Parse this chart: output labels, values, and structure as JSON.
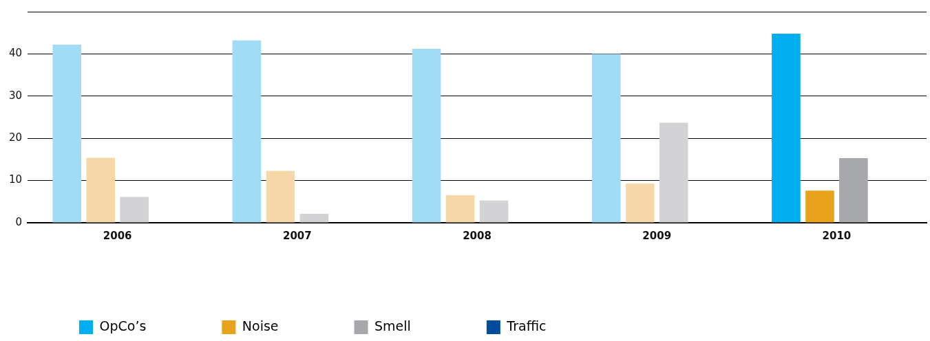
{
  "chart_data": {
    "type": "bar",
    "categories": [
      "2006",
      "2007",
      "2008",
      "2009",
      "2010"
    ],
    "series": [
      {
        "name": "OpCo’s",
        "color": "#00aeef",
        "colors": [
          "#a0dcf6",
          "#a0dcf6",
          "#a0dcf6",
          "#a0dcf6",
          "#00aeef"
        ],
        "values": [
          42.2,
          43.2,
          41.2,
          40,
          44.8
        ]
      },
      {
        "name": "Noise",
        "color": "#e8a21c",
        "colors": [
          "#f6d7a8",
          "#f6d7a8",
          "#f6d7a8",
          "#f6d7a8",
          "#e8a21c"
        ],
        "values": [
          15.4,
          12.3,
          6.5,
          9.3,
          7.6
        ]
      },
      {
        "name": "Smell",
        "color": "#a7a8ac",
        "colors": [
          "#d3d3d5",
          "#d3d3d5",
          "#d3d3d5",
          "#d3d3d5",
          "#a7a8ac"
        ],
        "values": [
          6.1,
          2.1,
          5.3,
          23.7,
          15.3
        ]
      },
      {
        "name": "Traffic",
        "color": "#004b9b",
        "values": [
          null,
          null,
          null,
          null,
          null
        ]
      }
    ],
    "ylim": [
      0,
      50
    ],
    "yticks": [
      0,
      10,
      20,
      30,
      40,
      {
        "value": 50,
        "label": null
      }
    ],
    "grid": "y",
    "legend": "bottom left"
  }
}
